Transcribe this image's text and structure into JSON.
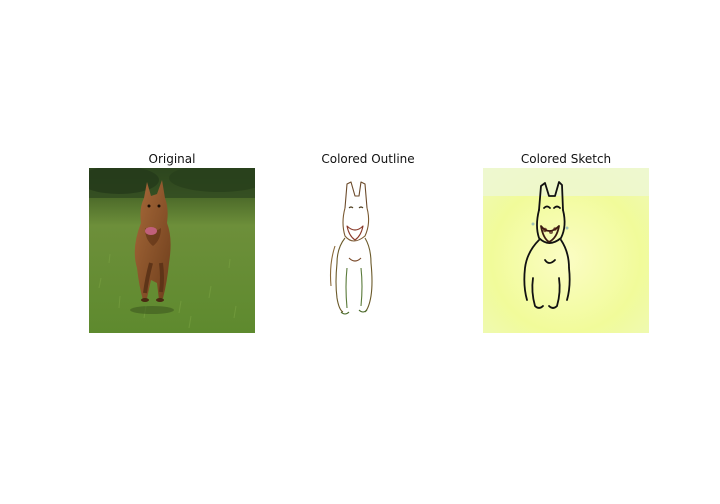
{
  "figure": {
    "panels": [
      {
        "title": "Original",
        "image": "photo of a brown dog running on grass"
      },
      {
        "title": "Colored Outline",
        "image": "thin colored line drawing of the dog on white"
      },
      {
        "title": "Colored Sketch",
        "image": "dark sketch lines of the dog over a pale yellow-green wash"
      }
    ]
  }
}
